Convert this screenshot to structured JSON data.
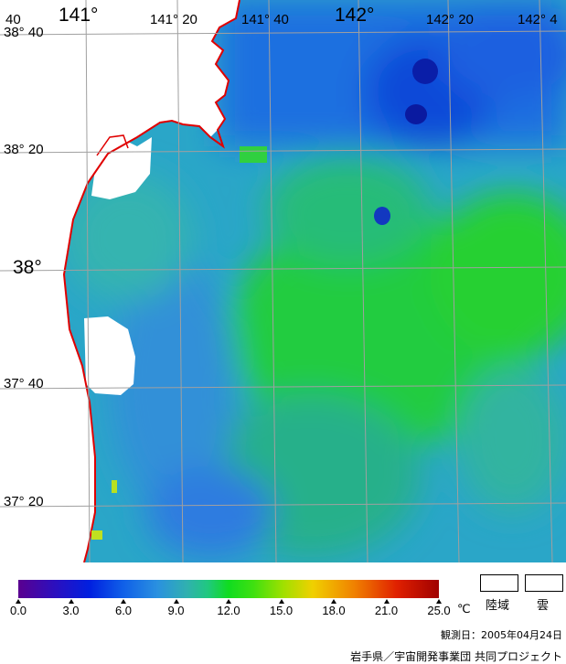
{
  "map": {
    "lon_labels": [
      {
        "text": "40",
        "major": false
      },
      {
        "text": "141°",
        "major": true
      },
      {
        "text": "141° 20",
        "major": false
      },
      {
        "text": "141° 40",
        "major": false
      },
      {
        "text": "142°",
        "major": true
      },
      {
        "text": "142° 20",
        "major": false
      },
      {
        "text": "142° 4",
        "major": false
      }
    ],
    "lat_labels": [
      {
        "text": "38° 40",
        "major": false
      },
      {
        "text": "38° 20",
        "major": false
      },
      {
        "text": "38°",
        "major": true
      },
      {
        "text": "37° 40",
        "major": false
      },
      {
        "text": "37° 20",
        "major": false
      }
    ]
  },
  "legend": {
    "ticks": [
      "0.0",
      "3.0",
      "6.0",
      "9.0",
      "12.0",
      "15.0",
      "18.0",
      "21.0",
      "25.0"
    ],
    "unit": "℃",
    "land_label": "陸域",
    "cloud_label": "雲"
  },
  "footer": {
    "observation_date": "観測日：2005年04月24日",
    "credit": "岩手県／宇宙開発事業団 共同プロジェクト"
  },
  "colors": {
    "coastline": "#e00000",
    "grid": "#a0a0a0",
    "land": "#ffffff"
  }
}
